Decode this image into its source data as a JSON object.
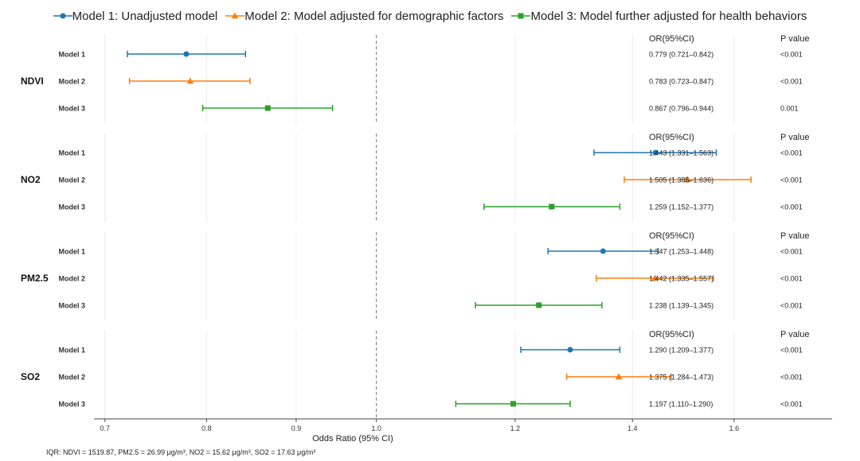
{
  "legend": [
    {
      "label": "Model 1: Unadjusted model",
      "color": "#1f77b4",
      "marker": "circle"
    },
    {
      "label": "Model 2: Model adjusted for demographic factors",
      "color": "#ff7f0e",
      "marker": "triangle"
    },
    {
      "label": "Model 3: Model further adjusted for health behaviors",
      "color": "#2ca02c",
      "marker": "square"
    }
  ],
  "table_headers": {
    "or": "OR(95%CI)",
    "p": "P value"
  },
  "footnote": "IQR: NDVI = 1519.87, PM2.5 = 26.99 μg/m³, NO2 = 15.62 μg/m³, SO2 = 17.63 μg/m³",
  "chart_data": {
    "type": "forest",
    "xlabel": "Odds Ratio (95% CI)",
    "xlim": [
      0.69,
      1.82
    ],
    "xticks": [
      0.7,
      0.8,
      0.9,
      1.0,
      1.2,
      1.4,
      1.6
    ],
    "xticks_labels": [
      "0.7",
      "0.8",
      "0.9",
      "1.0",
      "1.2",
      "1.4",
      "1.6"
    ],
    "xscale": "log",
    "reference_line": 1.0,
    "groups": [
      {
        "name": "NDVI",
        "rows": [
          {
            "model": "Model 1",
            "or": 0.779,
            "lo": 0.721,
            "hi": 0.842,
            "or_text": "0.779 (0.721–0.842)",
            "p": "<0.001"
          },
          {
            "model": "Model 2",
            "or": 0.783,
            "lo": 0.723,
            "hi": 0.847,
            "or_text": "0.783 (0.723–0.847)",
            "p": "<0.001"
          },
          {
            "model": "Model 3",
            "or": 0.867,
            "lo": 0.796,
            "hi": 0.944,
            "or_text": "0.867 (0.796–0.944)",
            "p": "0.001"
          }
        ]
      },
      {
        "name": "NO2",
        "rows": [
          {
            "model": "Model 1",
            "or": 1.443,
            "lo": 1.331,
            "hi": 1.563,
            "or_text": "1.443 (1.331–1.563)",
            "p": "<0.001"
          },
          {
            "model": "Model 2",
            "or": 1.505,
            "lo": 1.385,
            "hi": 1.636,
            "or_text": "1.505 (1.385–1.636)",
            "p": "<0.001"
          },
          {
            "model": "Model 3",
            "or": 1.259,
            "lo": 1.152,
            "hi": 1.377,
            "or_text": "1.259 (1.152–1.377)",
            "p": "<0.001"
          }
        ]
      },
      {
        "name": "PM2.5",
        "rows": [
          {
            "model": "Model 1",
            "or": 1.347,
            "lo": 1.253,
            "hi": 1.448,
            "or_text": "1.347 (1.253–1.448)",
            "p": "<0.001"
          },
          {
            "model": "Model 2",
            "or": 1.442,
            "lo": 1.335,
            "hi": 1.557,
            "or_text": "1.442 (1.335–1.557)",
            "p": "<0.001"
          },
          {
            "model": "Model 3",
            "or": 1.238,
            "lo": 1.139,
            "hi": 1.345,
            "or_text": "1.238 (1.139–1.345)",
            "p": "<0.001"
          }
        ]
      },
      {
        "name": "SO2",
        "rows": [
          {
            "model": "Model 1",
            "or": 1.29,
            "lo": 1.209,
            "hi": 1.377,
            "or_text": "1.290 (1.209–1.377)",
            "p": "<0.001"
          },
          {
            "model": "Model 2",
            "or": 1.375,
            "lo": 1.284,
            "hi": 1.473,
            "or_text": "1.375 (1.284–1.473)",
            "p": "<0.001"
          },
          {
            "model": "Model 3",
            "or": 1.197,
            "lo": 1.11,
            "hi": 1.29,
            "or_text": "1.197 (1.110–1.290)",
            "p": "<0.001"
          }
        ]
      }
    ]
  }
}
